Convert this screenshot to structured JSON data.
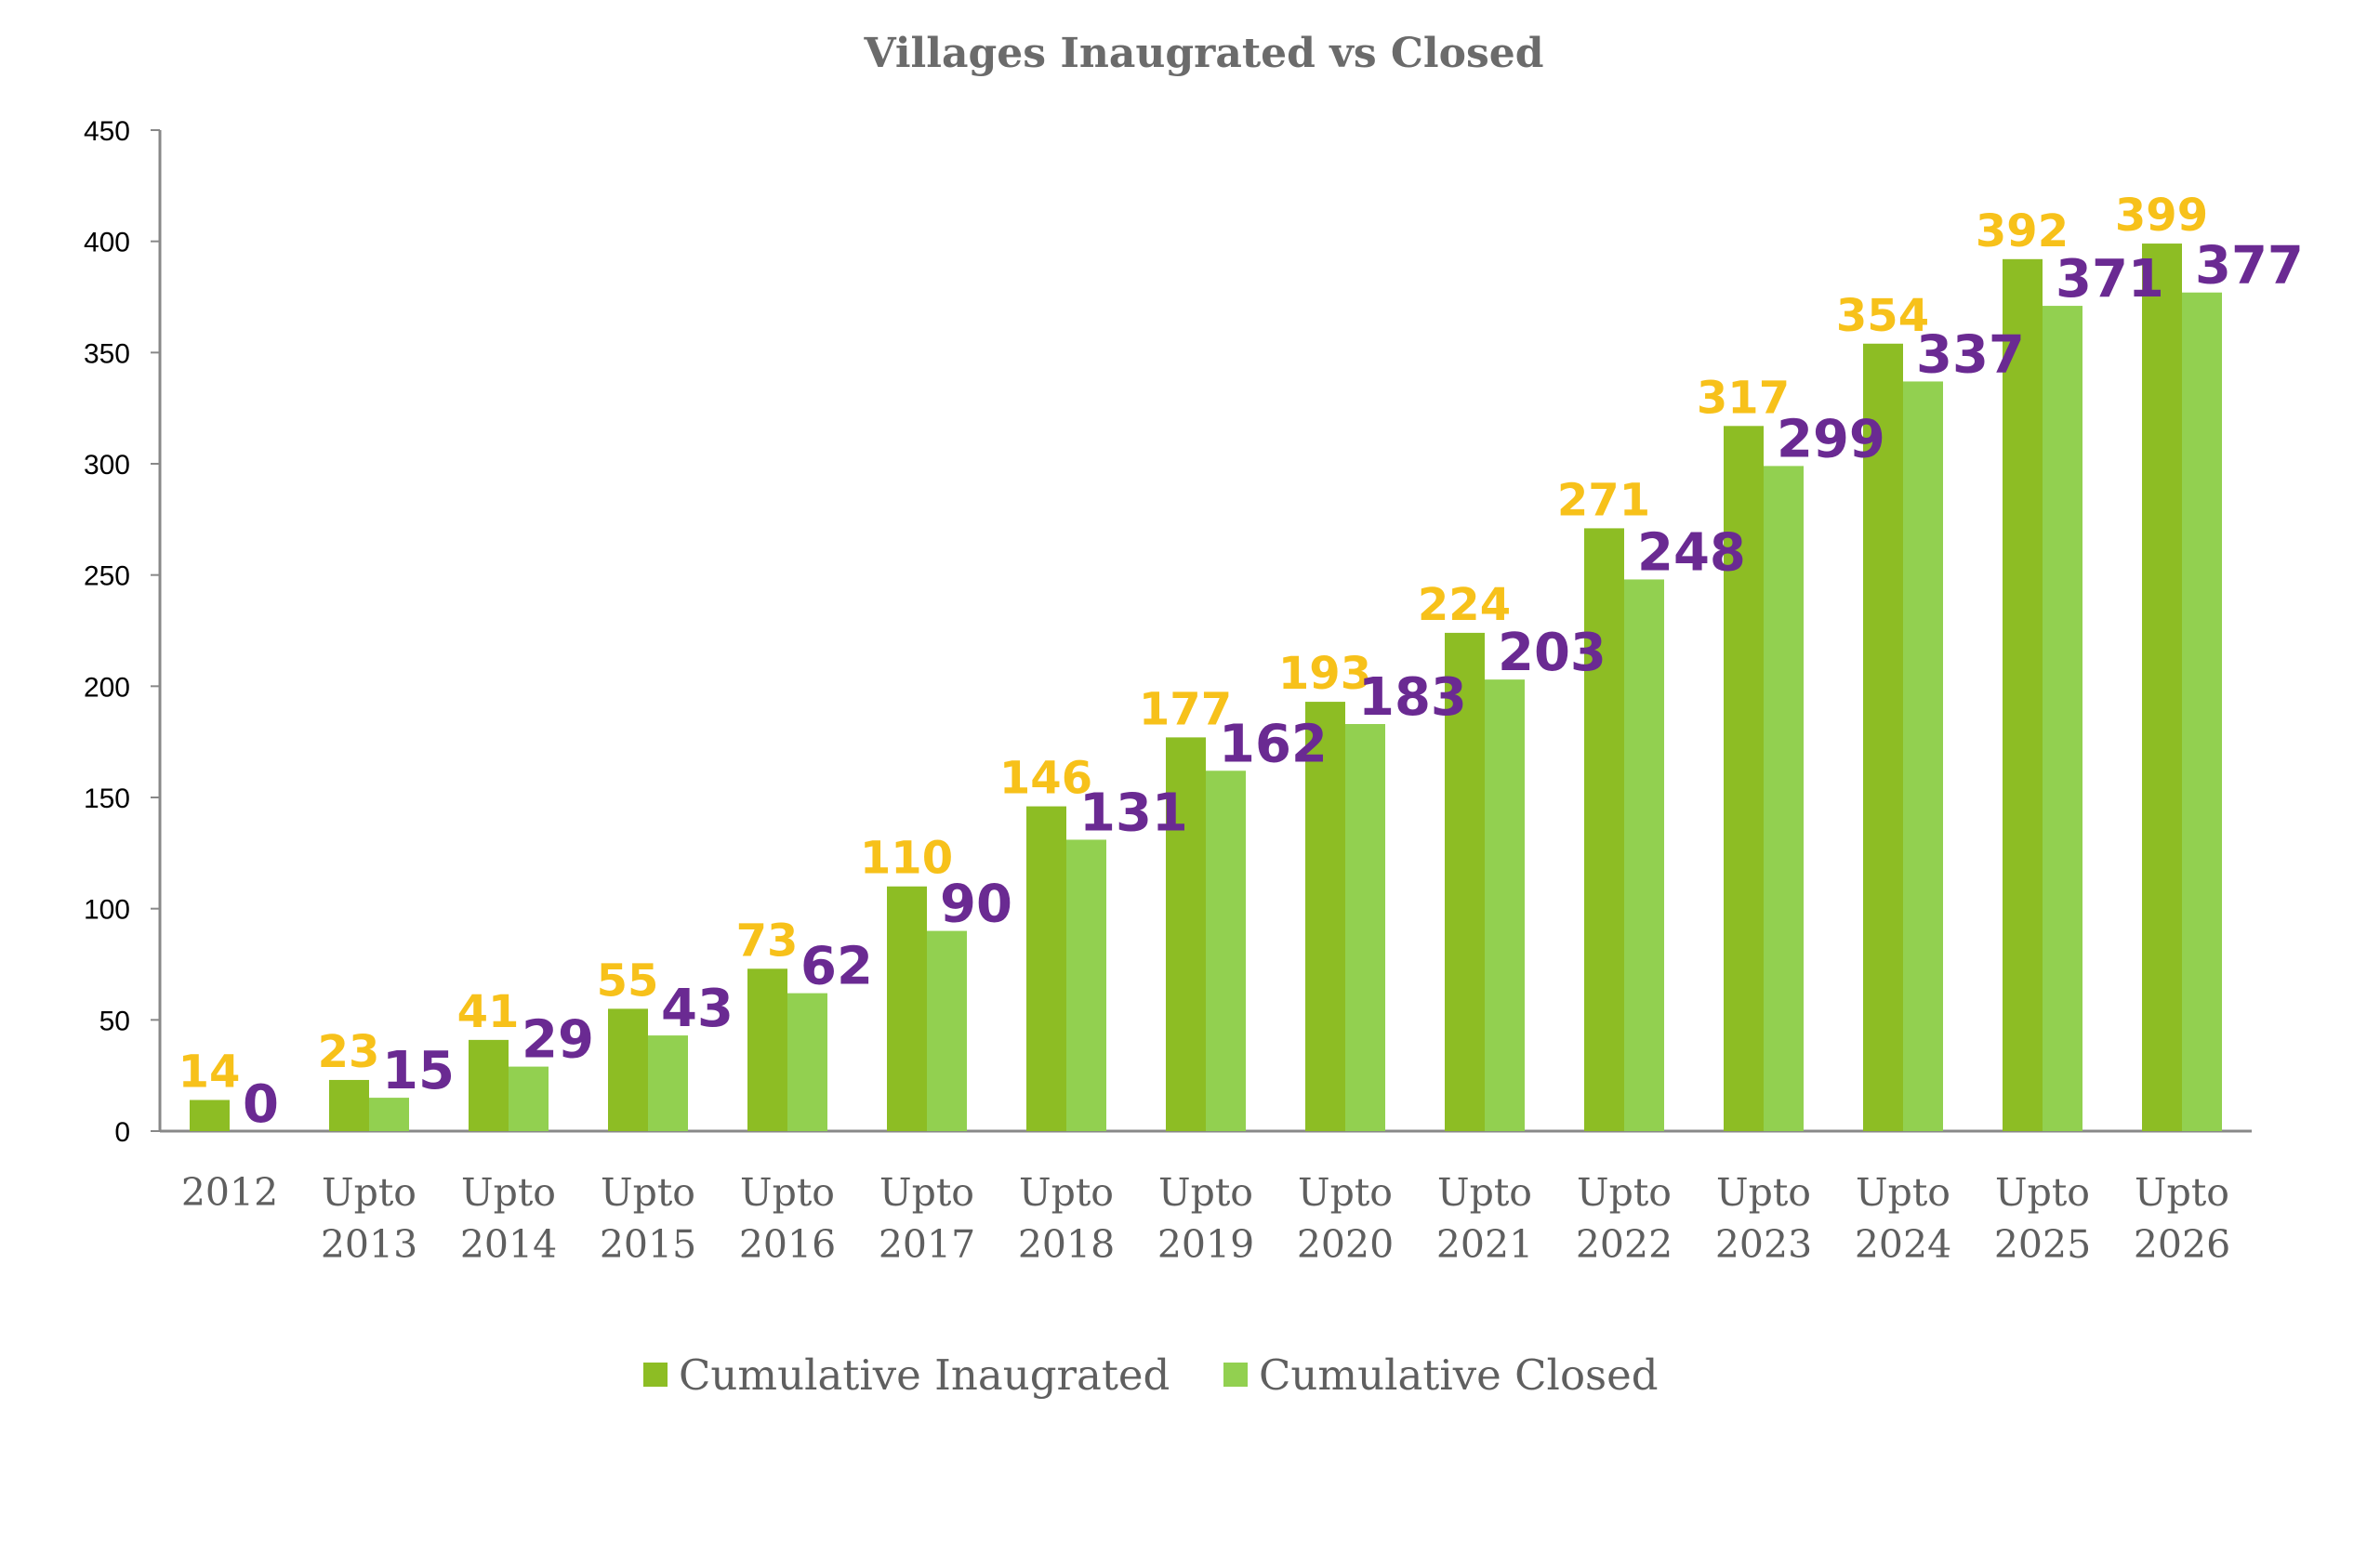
{
  "chart_data": {
    "type": "bar",
    "title": "Villages Inaugrated vs Closed",
    "xlabel": "",
    "ylabel": "",
    "ylim": [
      0,
      450
    ],
    "yticks": [
      0,
      50,
      100,
      150,
      200,
      250,
      300,
      350,
      400,
      450
    ],
    "categories": [
      [
        "2012"
      ],
      [
        "Upto",
        "2013"
      ],
      [
        "Upto",
        "2014"
      ],
      [
        "Upto",
        "2015"
      ],
      [
        "Upto",
        "2016"
      ],
      [
        "Upto",
        "2017"
      ],
      [
        "Upto",
        "2018"
      ],
      [
        "Upto",
        "2019"
      ],
      [
        "Upto",
        "2020"
      ],
      [
        "Upto",
        "2021"
      ],
      [
        "Upto",
        "2022"
      ],
      [
        "Upto",
        "2023"
      ],
      [
        "Upto",
        "2024"
      ],
      [
        "Upto",
        "2025"
      ],
      [
        "Upto",
        "2026"
      ]
    ],
    "series": [
      {
        "name": "Cumulative Inaugrated",
        "color": "#8dbd24",
        "label_color": "#f7c11a",
        "values": [
          14,
          23,
          41,
          55,
          73,
          110,
          146,
          177,
          193,
          224,
          271,
          317,
          354,
          392,
          399
        ]
      },
      {
        "name": "Cumulative Closed",
        "color": "#92d050",
        "label_color": "#6a2a92",
        "values": [
          0,
          15,
          29,
          43,
          62,
          90,
          131,
          162,
          183,
          203,
          248,
          299,
          337,
          371,
          377
        ]
      }
    ],
    "grid": false,
    "legend_position": "bottom-center",
    "axis_color": "#888888"
  }
}
